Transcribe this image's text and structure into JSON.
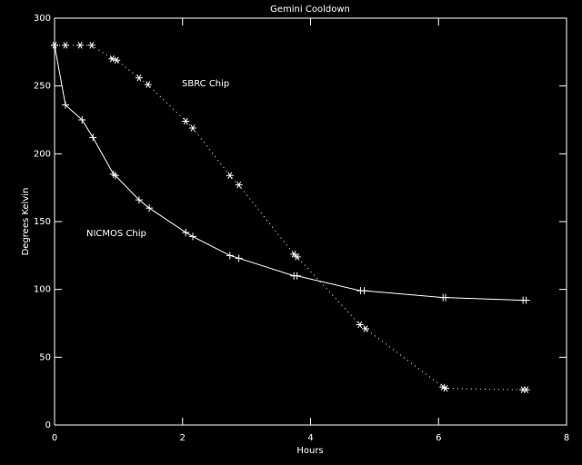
{
  "chart_data": {
    "type": "line",
    "title": "Gemini Cooldown",
    "x_label": "Hours",
    "y_label": "Degrees Kelvin",
    "xlim": [
      0,
      8
    ],
    "xticks": [
      0,
      2,
      4,
      6,
      8
    ],
    "ylim": [
      0,
      300
    ],
    "yticks": [
      0,
      50,
      100,
      150,
      200,
      250,
      300
    ],
    "annotations": [
      "SBRC Chip",
      "NICMOS Chip"
    ],
    "series": [
      {
        "name": "NICMOS Chip",
        "color": "#ffffff",
        "line_style": "solid",
        "marker": "+",
        "x": [
          0,
          0.17,
          0.43,
          0.6,
          0.92,
          0.95,
          1.32,
          1.48,
          2.05,
          2.16,
          2.74,
          2.88,
          3.74,
          3.79,
          4.78,
          4.84,
          6.07,
          6.11,
          7.32,
          7.37
        ],
        "values": [
          280,
          236,
          225,
          212,
          185,
          184,
          166,
          160,
          142,
          139,
          125,
          123,
          110,
          110,
          99,
          99,
          94,
          94,
          92,
          92
        ]
      },
      {
        "name": "SBRC Chip",
        "color": "#ffffff",
        "line_style": "dotted",
        "marker": "*",
        "x": [
          0,
          0.17,
          0.4,
          0.58,
          0.9,
          0.97,
          1.32,
          1.46,
          2.05,
          2.16,
          2.74,
          2.88,
          3.74,
          3.79,
          4.77,
          4.86,
          6.07,
          6.11,
          7.32,
          7.37
        ],
        "values": [
          280,
          280,
          280,
          280,
          270,
          269,
          256,
          251,
          224,
          219,
          184,
          177,
          126,
          124,
          74,
          71,
          28,
          27,
          26,
          26
        ]
      }
    ]
  }
}
